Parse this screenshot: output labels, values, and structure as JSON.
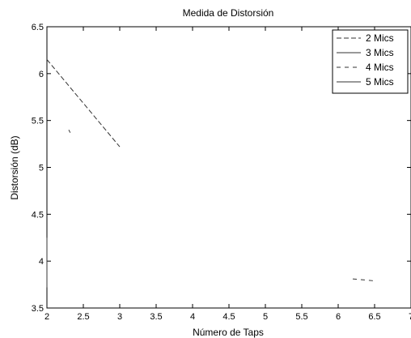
{
  "chart_data": {
    "type": "line",
    "title": "Medida de Distorsión",
    "xlabel": "Número de Taps",
    "ylabel": "Distorsión (dB)",
    "xlim": [
      2,
      7
    ],
    "ylim": [
      3.5,
      6.5
    ],
    "x_ticks": [
      "2",
      "2.5",
      "3",
      "3.5",
      "4",
      "4.5",
      "5",
      "5.5",
      "6",
      "6.5",
      "7"
    ],
    "y_ticks": [
      "3.5",
      "4",
      "4.5",
      "5",
      "5.5",
      "6",
      "6.5"
    ],
    "grid": false,
    "legend_position": "top-right",
    "series": [
      {
        "name": "2 Mics",
        "dash": "6,3",
        "x": [
          2,
          3
        ],
        "y": [
          6.15,
          5.22
        ]
      },
      {
        "name": "3 Mics",
        "dash": "",
        "x": [
          2.3,
          2.32
        ],
        "y": [
          5.4,
          5.37
        ]
      },
      {
        "name": "4 Mics",
        "dash": "5,5",
        "x": [
          6.2,
          6.5
        ],
        "y": [
          3.81,
          3.79
        ]
      },
      {
        "name": "5 Mics",
        "dash": "",
        "x": [
          2,
          2.0
        ],
        "y": [
          4.25,
          3.72
        ]
      }
    ]
  }
}
